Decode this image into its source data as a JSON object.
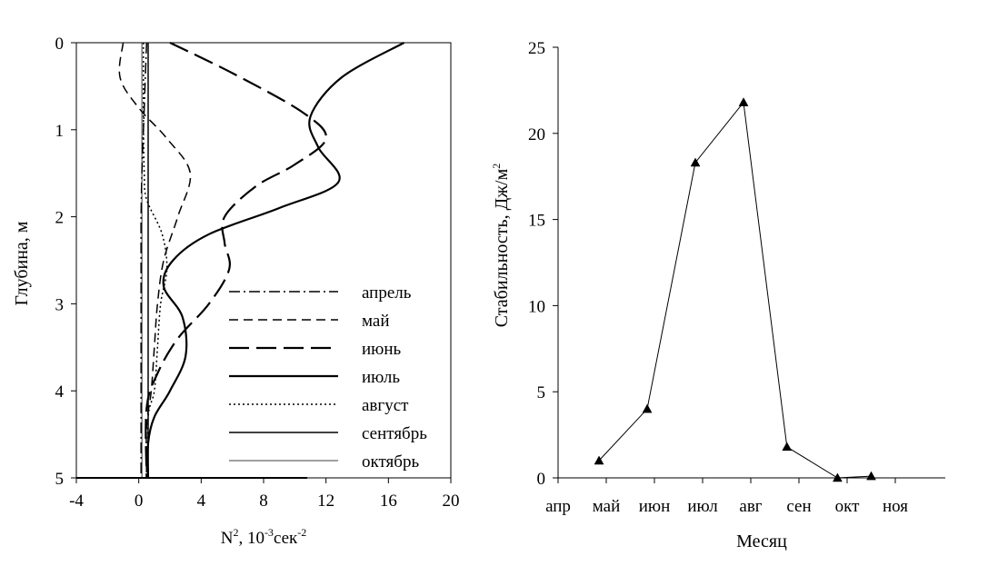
{
  "chart_data": [
    {
      "type": "line",
      "orientation": "profile",
      "xlabel_main": "N",
      "xlabel_sup": "2",
      "xlabel_mid": ", 10",
      "xlabel_sup2": "-3",
      "xlabel_unit": "сек",
      "xlabel_sup3": "-2",
      "ylabel": "Глубина, м",
      "xlim": [
        -4,
        20
      ],
      "ylim": [
        0,
        5
      ],
      "y_inverted": true,
      "xticks": [
        "-4",
        "0",
        "4",
        "8",
        "12",
        "16",
        "20"
      ],
      "xtick_values": [
        -4,
        0,
        4,
        8,
        12,
        16,
        20
      ],
      "yticks": [
        "0",
        "1",
        "2",
        "3",
        "4",
        "5"
      ],
      "ytick_values": [
        0,
        1,
        2,
        3,
        4,
        5
      ],
      "legend_position": "lower-right",
      "series": [
        {
          "name": "апрель",
          "style": "dashdot",
          "points": [
            [
              0.5,
              0
            ],
            [
              0.4,
              0.5
            ],
            [
              0.3,
              1
            ],
            [
              0.2,
              1.5
            ],
            [
              0.15,
              2
            ],
            [
              0.15,
              2.5
            ],
            [
              0.15,
              3
            ],
            [
              0.15,
              3.5
            ],
            [
              0.15,
              4
            ],
            [
              0.15,
              4.5
            ],
            [
              0.15,
              5
            ]
          ]
        },
        {
          "name": "май",
          "style": "dashed",
          "points": [
            [
              -1,
              0
            ],
            [
              -1.2,
              0.4
            ],
            [
              0,
              0.75
            ],
            [
              1.8,
              1.1
            ],
            [
              3.3,
              1.5
            ],
            [
              2.5,
              2.0
            ],
            [
              1.6,
              2.5
            ],
            [
              1.2,
              3.0
            ],
            [
              1.0,
              3.5
            ],
            [
              0.8,
              4.0
            ],
            [
              0.5,
              4.4
            ],
            [
              0.5,
              5
            ]
          ]
        },
        {
          "name": "июнь",
          "style": "longdash",
          "points": [
            [
              2,
              0
            ],
            [
              6,
              0.35
            ],
            [
              10.5,
              0.8
            ],
            [
              12,
              1.1
            ],
            [
              10,
              1.4
            ],
            [
              7.5,
              1.65
            ],
            [
              5.5,
              2.0
            ],
            [
              5.5,
              2.3
            ],
            [
              5.8,
              2.6
            ],
            [
              4.5,
              3.0
            ],
            [
              2.5,
              3.4
            ],
            [
              1.2,
              3.8
            ],
            [
              0.5,
              4.2
            ],
            [
              0.5,
              5
            ]
          ]
        },
        {
          "name": "июль",
          "style": "solid-thick",
          "points": [
            [
              17,
              0
            ],
            [
              13,
              0.4
            ],
            [
              11,
              0.85
            ],
            [
              11.5,
              1.2
            ],
            [
              12.8,
              1.6
            ],
            [
              9,
              1.9
            ],
            [
              4.5,
              2.2
            ],
            [
              2.2,
              2.5
            ],
            [
              1.6,
              2.8
            ],
            [
              2.8,
              3.15
            ],
            [
              3.0,
              3.6
            ],
            [
              2.0,
              4.0
            ],
            [
              1.0,
              4.3
            ],
            [
              0.6,
              4.6
            ],
            [
              0.6,
              5
            ]
          ]
        },
        {
          "name": "август",
          "style": "dotted",
          "points": [
            [
              0.3,
              0
            ],
            [
              0.3,
              0.5
            ],
            [
              0.3,
              1
            ],
            [
              0.35,
              1.5
            ],
            [
              0.5,
              1.8
            ],
            [
              1.5,
              2.2
            ],
            [
              1.8,
              2.6
            ],
            [
              1.4,
              3.0
            ],
            [
              1.2,
              3.5
            ],
            [
              1.0,
              4.0
            ],
            [
              0.6,
              4.3
            ],
            [
              0.6,
              5
            ]
          ]
        },
        {
          "name": "сентябрь",
          "style": "solid",
          "points": [
            [
              0.6,
              0
            ],
            [
              0.6,
              1
            ],
            [
              0.6,
              2
            ],
            [
              0.6,
              3
            ],
            [
              0.6,
              4
            ],
            [
              0.6,
              5
            ]
          ]
        },
        {
          "name": "октябрь",
          "style": "thin",
          "points": [
            [
              0.2,
              0
            ],
            [
              0.2,
              1
            ],
            [
              0.2,
              2
            ],
            [
              0.2,
              3
            ],
            [
              0.2,
              4
            ],
            [
              0.2,
              5
            ]
          ]
        }
      ]
    },
    {
      "type": "line",
      "ylabel_main": "Стабильность, Дж/м",
      "ylabel_sup": "2",
      "xlabel": "Месяц",
      "ylim": [
        0,
        25
      ],
      "yticks": [
        "0",
        "5",
        "10",
        "15",
        "20",
        "25"
      ],
      "ytick_values": [
        0,
        5,
        10,
        15,
        20,
        25
      ],
      "categories": [
        "апр",
        "май",
        "июн",
        "июл",
        "авг",
        "сен",
        "окт",
        "ноя"
      ],
      "marker": "triangle",
      "series": [
        {
          "points": [
            [
              0.85,
              1.0
            ],
            [
              1.85,
              4.0
            ],
            [
              2.85,
              18.3
            ],
            [
              3.85,
              21.8
            ],
            [
              4.75,
              1.8
            ],
            [
              5.8,
              0.0
            ],
            [
              6.5,
              0.1
            ]
          ]
        }
      ]
    }
  ]
}
